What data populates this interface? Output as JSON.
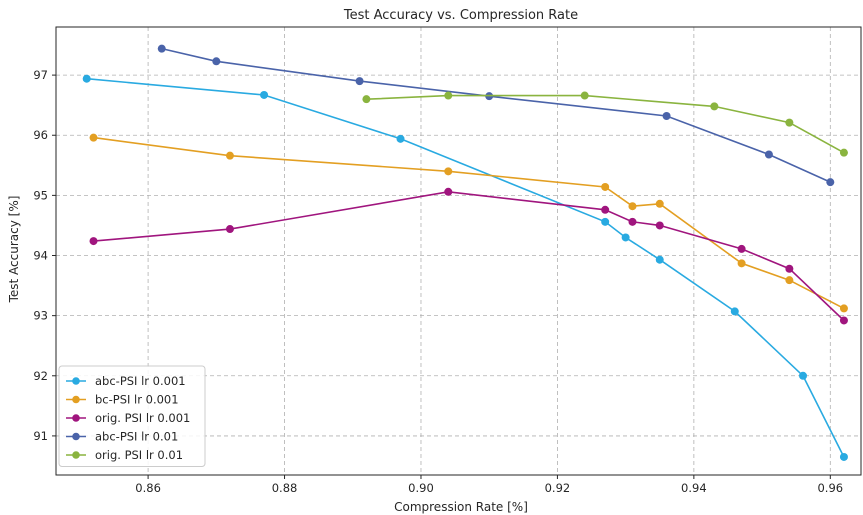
{
  "chart_data": {
    "type": "line",
    "title": "Test Accuracy vs. Compression Rate",
    "xlabel": "Compression Rate [%]",
    "ylabel": "Test Accuracy [%]",
    "xlim": [
      0.8465,
      0.9645
    ],
    "ylim": [
      90.35,
      97.8
    ],
    "xticks": [
      0.86,
      0.88,
      0.9,
      0.92,
      0.94,
      0.96
    ],
    "xtick_labels": [
      "0.86",
      "0.88",
      "0.90",
      "0.92",
      "0.94",
      "0.96"
    ],
    "yticks": [
      91,
      92,
      93,
      94,
      95,
      96,
      97
    ],
    "ytick_labels": [
      "91",
      "92",
      "93",
      "94",
      "95",
      "96",
      "97"
    ],
    "grid": true,
    "legend_position": "bottom-left",
    "series": [
      {
        "name": "abc-PSI lr 0.001",
        "color": "#29aae1",
        "x": [
          0.851,
          0.877,
          0.897,
          0.927,
          0.93,
          0.935,
          0.946,
          0.956,
          0.962
        ],
        "y": [
          96.94,
          96.67,
          95.94,
          94.56,
          94.3,
          93.93,
          93.07,
          92.0,
          90.65
        ]
      },
      {
        "name": "bc-PSI lr 0.001",
        "color": "#e39f22",
        "x": [
          0.852,
          0.872,
          0.904,
          0.927,
          0.931,
          0.935,
          0.947,
          0.954,
          0.962
        ],
        "y": [
          95.96,
          95.66,
          95.4,
          95.14,
          94.82,
          94.86,
          93.87,
          93.59,
          93.12
        ]
      },
      {
        "name": "orig. PSI lr 0.001",
        "color": "#a0157e",
        "x": [
          0.852,
          0.872,
          0.904,
          0.927,
          0.931,
          0.935,
          0.947,
          0.954,
          0.962
        ],
        "y": [
          94.24,
          94.44,
          95.06,
          94.76,
          94.56,
          94.5,
          94.11,
          93.78,
          92.92
        ]
      },
      {
        "name": "abc-PSI lr 0.01",
        "color": "#4a63a9",
        "x": [
          0.862,
          0.87,
          0.891,
          0.91,
          0.936,
          0.951,
          0.96
        ],
        "y": [
          97.44,
          97.23,
          96.9,
          96.65,
          96.32,
          95.68,
          95.22
        ]
      },
      {
        "name": "orig. PSI lr 0.01",
        "color": "#8ab43f",
        "x": [
          0.892,
          0.904,
          0.924,
          0.943,
          0.954,
          0.962
        ],
        "y": [
          96.6,
          96.66,
          96.66,
          96.48,
          96.21,
          95.71
        ]
      }
    ]
  }
}
